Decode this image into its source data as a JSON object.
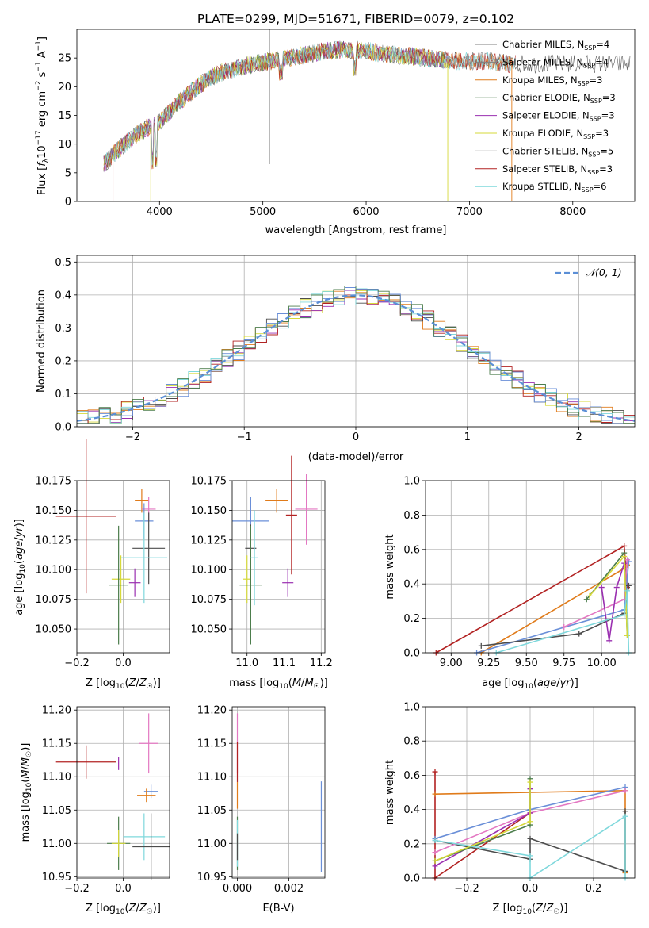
{
  "chart_data": [
    {
      "type": "line",
      "id": "spectrum",
      "title": "PLATE=0299, MJD=51671, FIBERID=0079, z=0.102",
      "xlabel": "wavelength [Angstrom, rest frame]",
      "ylabel": "Flux [f_λ10^{-17} erg cm^{-2} s^{-1} A^{-1}]",
      "xlim": [
        3200,
        8600
      ],
      "ylim": [
        0,
        30
      ],
      "xticks": [
        "4000",
        "5000",
        "6000",
        "7000",
        "8000"
      ],
      "yticks": [
        "0",
        "5",
        "10",
        "15",
        "20",
        "25"
      ],
      "grid": false,
      "legend_position": "right",
      "continuum": [
        [
          3460,
          6.5
        ],
        [
          3600,
          9
        ],
        [
          3800,
          12
        ],
        [
          4000,
          13.8
        ],
        [
          4200,
          17.5
        ],
        [
          4400,
          20.5
        ],
        [
          4600,
          22.5
        ],
        [
          4800,
          23.5
        ],
        [
          5000,
          24.2
        ],
        [
          5200,
          24.8
        ],
        [
          5400,
          25.5
        ],
        [
          5600,
          26.2
        ],
        [
          5800,
          26.5
        ],
        [
          6000,
          26.3
        ],
        [
          6200,
          25.6
        ],
        [
          6500,
          25.2
        ],
        [
          6800,
          24.5
        ],
        [
          7200,
          24.5
        ],
        [
          7400,
          24
        ]
      ],
      "series": [
        {
          "name": "Chabrier MILES, N_SSP=4",
          "label_main": "Chabrier MILES, N",
          "label_sub": "SSP",
          "label_tail": "=4",
          "color": "#7f7f7f",
          "xmax": 7400
        },
        {
          "name": "Salpeter MILES, N_SSP=4",
          "label_main": "Salpeter MILES, N",
          "label_sub": "SSP",
          "label_tail": "=4",
          "color": "#7f7f7f",
          "xmax": 7400
        },
        {
          "name": "Kroupa MILES, N_SSP=3",
          "label_main": "Kroupa MILES, N",
          "label_sub": "SSP",
          "label_tail": "=3",
          "color": "#e07b1a",
          "xmax": 7420
        },
        {
          "name": "Chabrier ELODIE, N_SSP=3",
          "label_main": "Chabrier ELODIE, N",
          "label_sub": "SSP",
          "label_tail": "=3",
          "color": "#4c7d4c",
          "xmax": 6800
        },
        {
          "name": "Salpeter ELODIE, N_SSP=3",
          "label_main": "Salpeter ELODIE, N",
          "label_sub": "SSP",
          "label_tail": "=3",
          "color": "#9a2fb0",
          "xmax": 6800
        },
        {
          "name": "Kroupa ELODIE, N_SSP=3",
          "label_main": "Kroupa ELODIE, N",
          "label_sub": "SSP",
          "label_tail": "=3",
          "color": "#d6d93a",
          "xmax": 6800
        },
        {
          "name": "Chabrier STELIB, N_SSP=5",
          "label_main": "Chabrier STELIB, N",
          "label_sub": "SSP",
          "label_tail": "=5",
          "color": "#4d4d4d",
          "xmax": 8560
        },
        {
          "name": "Salpeter STELIB, N_SSP=3",
          "label_main": "Salpeter STELIB, N",
          "label_sub": "SSP",
          "label_tail": "=3",
          "color": "#b22222",
          "xmax": 7450
        },
        {
          "name": "Kroupa STELIB, N_SSP=6",
          "label_main": "Kroupa STELIB, N",
          "label_sub": "SSP",
          "label_tail": "=6",
          "color": "#7fd8dc",
          "xmax": 7450
        }
      ]
    },
    {
      "type": "line",
      "id": "residuals",
      "xlabel": "(data-model)/error",
      "ylabel": "Normed distribution",
      "xlim": [
        -2.5,
        2.5
      ],
      "ylim": [
        0,
        0.52
      ],
      "xticks": [
        "−2",
        "−1",
        "0",
        "1",
        "2"
      ],
      "yticks": [
        "0.0",
        "0.1",
        "0.2",
        "0.3",
        "0.4",
        "0.5"
      ],
      "grid": true,
      "legend_position": "top-right",
      "legend_label": "𝒩(0, 1)",
      "gaussian_color": "#5b8fd6",
      "histogram_colors": [
        "#e07b1a",
        "#9a2fb0",
        "#d6d93a",
        "#4d4d4d",
        "#b22222",
        "#7fd8dc",
        "#6a8fd8",
        "#4c7d4c"
      ],
      "histogram_bins": {
        "start": -2.5,
        "width": 0.1
      }
    },
    {
      "type": "scatter",
      "id": "age-vs-z",
      "xlabel": "Z [log10(Z/Z☉)]",
      "ylabel": "age  [log10(age/yr)]",
      "xlim": [
        -0.2,
        0.2
      ],
      "ylim": [
        10.03,
        10.175
      ],
      "xticks": [
        "−0.2",
        "0.0"
      ],
      "yticks": [
        "10.050",
        "10.075",
        "10.100",
        "10.125",
        "10.150",
        "10.175"
      ],
      "grid": true,
      "points": [
        {
          "x": -0.16,
          "y": 10.145,
          "xerr": 0.13,
          "yerr": 0.065,
          "color": "#b22222"
        },
        {
          "x": 0.08,
          "y": 10.158,
          "xerr": 0.03,
          "yerr": 0.01,
          "color": "#e07b1a"
        },
        {
          "x": 0.11,
          "y": 10.151,
          "xerr": 0.03,
          "yerr": 0.01,
          "color": "#e377c2"
        },
        {
          "x": 0.09,
          "y": 10.141,
          "xerr": 0.04,
          "yerr": 0.015,
          "color": "#6a8fd8"
        },
        {
          "x": 0.11,
          "y": 10.118,
          "xerr": 0.07,
          "yerr": 0.03,
          "color": "#4d4d4d"
        },
        {
          "x": 0.09,
          "y": 10.11,
          "xerr": 0.1,
          "yerr": 0.038,
          "color": "#7fd8dc"
        },
        {
          "x": -0.01,
          "y": 10.092,
          "xerr": 0.04,
          "yerr": 0.02,
          "color": "#d6d93a"
        },
        {
          "x": 0.05,
          "y": 10.089,
          "xerr": 0.025,
          "yerr": 0.012,
          "color": "#9a2fb0"
        },
        {
          "x": -0.02,
          "y": 10.087,
          "xerr": 0.04,
          "yerr": 0.05,
          "color": "#4c7d4c"
        }
      ]
    },
    {
      "type": "scatter",
      "id": "age-vs-mass",
      "xlabel": "mass [log10(M/M☉)]",
      "xlim": [
        10.96,
        11.21
      ],
      "ylim": [
        10.03,
        10.175
      ],
      "xticks": [
        "11.0",
        "11.1",
        "11.2"
      ],
      "yticks": [
        "10.050",
        "10.075",
        "10.100",
        "10.125",
        "10.150",
        "10.175"
      ],
      "grid": true,
      "points": [
        {
          "x": 11.08,
          "y": 10.158,
          "xerr": 0.03,
          "yerr": 0.01,
          "color": "#e07b1a"
        },
        {
          "x": 11.16,
          "y": 10.151,
          "xerr": 0.03,
          "yerr": 0.03,
          "color": "#e377c2"
        },
        {
          "x": 11.12,
          "y": 10.146,
          "xerr": 0.015,
          "yerr": 0.05,
          "color": "#b22222"
        },
        {
          "x": 11.01,
          "y": 10.141,
          "xerr": 0.05,
          "yerr": 0.02,
          "color": "#6a8fd8"
        },
        {
          "x": 11.01,
          "y": 10.118,
          "xerr": 0.015,
          "yerr": 0.02,
          "color": "#4d4d4d"
        },
        {
          "x": 11.0,
          "y": 10.092,
          "xerr": 0.01,
          "yerr": 0.02,
          "color": "#d6d93a"
        },
        {
          "x": 11.11,
          "y": 10.089,
          "xerr": 0.015,
          "yerr": 0.012,
          "color": "#9a2fb0"
        },
        {
          "x": 11.01,
          "y": 10.087,
          "xerr": 0.03,
          "yerr": 0.05,
          "color": "#4c7d4c"
        },
        {
          "x": 11.02,
          "y": 10.11,
          "xerr": 0.01,
          "yerr": 0.04,
          "color": "#7fd8dc"
        }
      ]
    },
    {
      "type": "line",
      "id": "mass-weight-vs-age",
      "xlabel": "age  [log10(age/yr)]",
      "ylabel": "mass weight",
      "xlim": [
        8.83,
        10.22
      ],
      "ylim": [
        0,
        1
      ],
      "xticks": [
        "9.00",
        "9.25",
        "9.50",
        "9.75",
        "10.00"
      ],
      "yticks": [
        "0.0",
        "0.2",
        "0.4",
        "0.6",
        "0.8",
        "1.0"
      ],
      "grid": true,
      "series": [
        {
          "color": "#b22222",
          "points": [
            [
              8.9,
              0.0
            ],
            [
              10.15,
              0.62
            ],
            [
              10.17,
              0.38
            ]
          ]
        },
        {
          "color": "#e07b1a",
          "points": [
            [
              9.2,
              0.0
            ],
            [
              10.15,
              0.49
            ],
            [
              10.17,
              0.51
            ]
          ]
        },
        {
          "color": "#6a8fd8",
          "points": [
            [
              9.17,
              0.0
            ],
            [
              10.15,
              0.25
            ],
            [
              10.18,
              0.53
            ]
          ]
        },
        {
          "color": "#4d4d4d",
          "points": [
            [
              9.2,
              0.04
            ],
            [
              9.85,
              0.11
            ],
            [
              10.15,
              0.23
            ],
            [
              10.18,
              0.39
            ]
          ]
        },
        {
          "color": "#e377c2",
          "points": [
            [
              9.75,
              0.15
            ],
            [
              10.15,
              0.31
            ],
            [
              10.17,
              0.54
            ]
          ]
        },
        {
          "color": "#9a2fb0",
          "points": [
            [
              10.0,
              0.38
            ],
            [
              10.05,
              0.07
            ],
            [
              10.1,
              0.38
            ],
            [
              10.15,
              0.52
            ]
          ]
        },
        {
          "color": "#4c7d4c",
          "points": [
            [
              9.9,
              0.31
            ],
            [
              10.15,
              0.58
            ],
            [
              10.17,
              0.1
            ]
          ]
        },
        {
          "color": "#d6d93a",
          "points": [
            [
              9.92,
              0.33
            ],
            [
              10.15,
              0.56
            ],
            [
              10.17,
              0.1
            ]
          ]
        },
        {
          "color": "#7fd8dc",
          "points": [
            [
              9.3,
              0.0
            ],
            [
              10.15,
              0.22
            ],
            [
              10.17,
              0.36
            ],
            [
              10.18,
              0.0
            ]
          ]
        }
      ]
    },
    {
      "type": "scatter",
      "id": "mass-vs-z",
      "xlabel": "Z [log10(Z/Z☉)]",
      "ylabel": "mass [log10(M/M☉)]",
      "xlim": [
        -0.2,
        0.2
      ],
      "ylim": [
        10.948,
        11.205
      ],
      "xticks": [
        "−0.2",
        "0.0"
      ],
      "yticks": [
        "10.95",
        "11.00",
        "11.05",
        "11.10",
        "11.15",
        "11.20"
      ],
      "grid": true,
      "points": [
        {
          "x": -0.16,
          "y": 11.122,
          "xerr": 0.13,
          "yerr": 0.025,
          "color": "#b22222"
        },
        {
          "x": 0.11,
          "y": 11.15,
          "xerr": 0.04,
          "yerr": 0.045,
          "color": "#e377c2"
        },
        {
          "x": -0.02,
          "y": 11.12,
          "xerr": 0.001,
          "yerr": 0.01,
          "color": "#9a2fb0"
        },
        {
          "x": 0.12,
          "y": 11.078,
          "xerr": 0.03,
          "yerr": 0.01,
          "color": "#6a8fd8"
        },
        {
          "x": 0.1,
          "y": 11.072,
          "xerr": 0.04,
          "yerr": 0.01,
          "color": "#e07b1a"
        },
        {
          "x": 0.09,
          "y": 11.01,
          "xerr": 0.09,
          "yerr": 0.035,
          "color": "#7fd8dc"
        },
        {
          "x": -0.02,
          "y": 11.0,
          "xerr": 0.05,
          "yerr": 0.04,
          "color": "#4c7d4c"
        },
        {
          "x": -0.02,
          "y": 11.0,
          "xerr": 0.03,
          "yerr": 0.02,
          "color": "#d6d93a"
        },
        {
          "x": 0.12,
          "y": 10.995,
          "xerr": 0.08,
          "yerr": 0.05,
          "color": "#4d4d4d"
        }
      ]
    },
    {
      "type": "scatter",
      "id": "mass-vs-ebv",
      "xlabel": "E(B-V)",
      "xlim": [
        -0.0002,
        0.0034
      ],
      "ylim": [
        10.948,
        11.205
      ],
      "xticks": [
        "0.000",
        "0.002"
      ],
      "yticks": [
        "10.95",
        "11.00",
        "11.05",
        "11.10",
        "11.15",
        "11.20"
      ],
      "grid": true,
      "points": [
        {
          "x": 0.0,
          "y": 11.15,
          "xerr": 0,
          "yerr": 0.045,
          "color": "#e377c2"
        },
        {
          "x": 0.0,
          "y": 11.122,
          "xerr": 0,
          "yerr": 0.03,
          "color": "#b22222"
        },
        {
          "x": 0.0,
          "y": 11.072,
          "xerr": 0,
          "yerr": 0.02,
          "color": "#e07b1a"
        },
        {
          "x": 0.0,
          "y": 11.0,
          "xerr": 0,
          "yerr": 0.04,
          "color": "#4c7d4c"
        },
        {
          "x": 0.0,
          "y": 11.0,
          "xerr": 0,
          "yerr": 0.035,
          "color": "#7fd8dc"
        },
        {
          "x": 0.0,
          "y": 10.995,
          "xerr": 0,
          "yerr": 0.02,
          "color": "#4d4d4d"
        },
        {
          "x": 0.00326,
          "y": 11.025,
          "xerr": 0,
          "yerr": 0.068,
          "color": "#6a8fd8"
        }
      ]
    },
    {
      "type": "line",
      "id": "mass-weight-vs-z",
      "xlabel": "Z [log10(Z/Z☉)]",
      "ylabel": "mass weight",
      "xlim": [
        -0.33,
        0.33
      ],
      "ylim": [
        0,
        1
      ],
      "xticks": [
        "−0.2",
        "0.0",
        "0.2"
      ],
      "yticks": [
        "0.0",
        "0.2",
        "0.4",
        "0.6",
        "0.8",
        "1.0"
      ],
      "grid": true,
      "series": [
        {
          "color": "#b22222",
          "points": [
            [
              -0.3,
              0.62
            ],
            [
              -0.3,
              0.0
            ],
            [
              0.0,
              0.38
            ]
          ]
        },
        {
          "color": "#e07b1a",
          "points": [
            [
              -0.3,
              0.49
            ],
            [
              0.3,
              0.51
            ],
            [
              0.3,
              0.03
            ]
          ]
        },
        {
          "color": "#6a8fd8",
          "points": [
            [
              -0.3,
              0.23
            ],
            [
              0.0,
              0.4
            ],
            [
              0.3,
              0.53
            ]
          ]
        },
        {
          "color": "#4d4d4d",
          "points": [
            [
              -0.3,
              0.22
            ],
            [
              0.0,
              0.11
            ],
            [
              0.0,
              0.23
            ],
            [
              0.3,
              0.04
            ],
            [
              0.3,
              0.39
            ]
          ]
        },
        {
          "color": "#e377c2",
          "points": [
            [
              -0.3,
              0.15
            ],
            [
              0.0,
              0.38
            ],
            [
              0.3,
              0.51
            ]
          ]
        },
        {
          "color": "#9a2fb0",
          "points": [
            [
              -0.3,
              0.07
            ],
            [
              0.0,
              0.38
            ],
            [
              0.0,
              0.52
            ]
          ]
        },
        {
          "color": "#4c7d4c",
          "points": [
            [
              -0.3,
              0.1
            ],
            [
              0.0,
              0.31
            ],
            [
              0.0,
              0.58
            ]
          ]
        },
        {
          "color": "#d6d93a",
          "points": [
            [
              -0.3,
              0.1
            ],
            [
              0.0,
              0.33
            ],
            [
              0.0,
              0.56
            ]
          ]
        },
        {
          "color": "#7fd8dc",
          "points": [
            [
              -0.3,
              0.22
            ],
            [
              0.0,
              0.13
            ],
            [
              0.0,
              0.0
            ],
            [
              0.3,
              0.36
            ],
            [
              0.3,
              0.0
            ]
          ]
        }
      ]
    }
  ]
}
